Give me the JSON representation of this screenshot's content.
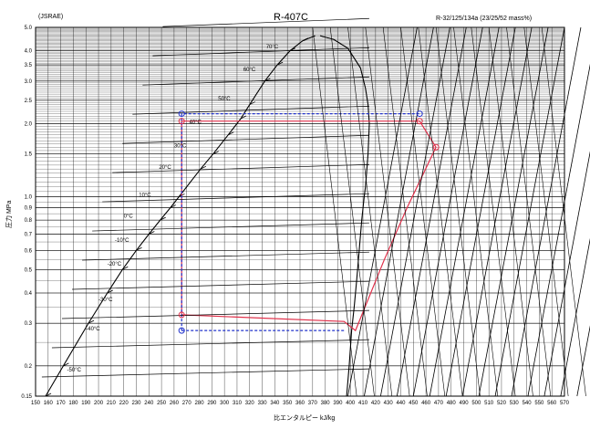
{
  "chart_data": {
    "type": "line",
    "title": "R-407C",
    "publisher": "(JSRAE)",
    "composition": "R-32/125/134a (23/25/52 mass%)",
    "xlabel": "比エンタルピー kJ/kg",
    "ylabel": "圧力 MPa",
    "x_scale": "linear",
    "y_scale": "log",
    "xlim": [
      150,
      570
    ],
    "ylim": [
      0.15,
      5.0
    ],
    "grid": true,
    "x_ticks": [
      150,
      160,
      170,
      180,
      190,
      200,
      210,
      220,
      230,
      240,
      250,
      260,
      270,
      280,
      290,
      300,
      310,
      320,
      330,
      340,
      350,
      360,
      370,
      380,
      390,
      400,
      410,
      420,
      430,
      440,
      450,
      460,
      470,
      480,
      490,
      500,
      510,
      520,
      530,
      540,
      550,
      560,
      570
    ],
    "y_ticks": [
      {
        "v": 0.15,
        "label": "0.15"
      },
      {
        "v": 0.2,
        "label": "0.2"
      },
      {
        "v": 0.3,
        "label": "0.3"
      },
      {
        "v": 0.4,
        "label": "0.4"
      },
      {
        "v": 0.5,
        "label": "0.5"
      },
      {
        "v": 0.6,
        "label": "0.6"
      },
      {
        "v": 0.7,
        "label": "0.7"
      },
      {
        "v": 0.8,
        "label": "0.8"
      },
      {
        "v": 0.9,
        "label": "0.9"
      },
      {
        "v": 1.0,
        "label": "1.0"
      },
      {
        "v": 1.5,
        "label": "1.5"
      },
      {
        "v": 2.0,
        "label": "2.0"
      },
      {
        "v": 2.5,
        "label": "2.5"
      },
      {
        "v": 3.0,
        "label": "3.0"
      },
      {
        "v": 3.5,
        "label": "3.5"
      },
      {
        "v": 4.0,
        "label": "4.0"
      },
      {
        "v": 5.0,
        "label": "5.0"
      }
    ],
    "colors": {
      "cycle_red": "#e0304a",
      "cycle_blue": "#2233cc",
      "lines": "#000000",
      "grid": "#000000"
    },
    "series": [
      {
        "kind": "saturated-liquid",
        "points": [
          [
            158,
            0.15
          ],
          [
            172,
            0.2
          ],
          [
            192,
            0.3
          ],
          [
            207,
            0.4
          ],
          [
            219,
            0.5
          ],
          [
            230,
            0.6
          ],
          [
            240,
            0.7
          ],
          [
            249,
            0.8
          ],
          [
            257,
            0.9
          ],
          [
            264,
            1.0
          ],
          [
            281,
            1.3
          ],
          [
            291,
            1.5
          ],
          [
            303,
            1.8
          ],
          [
            313,
            2.1
          ],
          [
            320,
            2.4
          ],
          [
            332,
            3.0
          ],
          [
            342,
            3.5
          ],
          [
            352,
            4.0
          ],
          [
            362,
            4.4
          ],
          [
            372,
            4.62
          ]
        ]
      },
      {
        "kind": "saturated-vapor",
        "points": [
          [
            376,
            4.62
          ],
          [
            387,
            4.45
          ],
          [
            398,
            4.1
          ],
          [
            408,
            3.4
          ],
          [
            412,
            2.8
          ],
          [
            414,
            2.4
          ],
          [
            415,
            2.0
          ],
          [
            414,
            1.5
          ],
          [
            412,
            1.1
          ],
          [
            411,
            1.0
          ],
          [
            409,
            0.8
          ],
          [
            407,
            0.6
          ],
          [
            405,
            0.45
          ],
          [
            403,
            0.35
          ],
          [
            401,
            0.28
          ],
          [
            399,
            0.2
          ],
          [
            397,
            0.15
          ]
        ]
      },
      {
        "kind": "cycle-red",
        "points": [
          [
            266,
            0.325
          ],
          [
            266,
            2.05
          ],
          [
            455,
            2.05
          ],
          [
            468,
            1.6
          ],
          [
            445,
            0.9
          ],
          [
            427,
            0.55
          ],
          [
            404,
            0.28
          ],
          [
            395,
            0.305
          ],
          [
            266,
            0.325
          ]
        ]
      },
      {
        "kind": "cycle-blue",
        "points": [
          [
            266,
            0.28
          ],
          [
            266,
            2.2
          ],
          [
            455,
            2.2
          ]
        ]
      },
      {
        "kind": "cycle-blue-2",
        "points": [
          [
            266,
            0.28
          ],
          [
            395,
            0.28
          ]
        ]
      }
    ],
    "temperature_labels": [
      {
        "text": "-50°C",
        "h": 175,
        "p": 0.19
      },
      {
        "text": "-40°C",
        "h": 190,
        "p": 0.28
      },
      {
        "text": "-30°C",
        "h": 200,
        "p": 0.37
      },
      {
        "text": "-20°C",
        "h": 207,
        "p": 0.52
      },
      {
        "text": "-10°C",
        "h": 213,
        "p": 0.65
      },
      {
        "text": "0°C",
        "h": 220,
        "p": 0.82
      },
      {
        "text": "10°C",
        "h": 232,
        "p": 1.0
      },
      {
        "text": "20°C",
        "h": 248,
        "p": 1.3
      },
      {
        "text": "30°C",
        "h": 260,
        "p": 1.6
      },
      {
        "text": "40°C",
        "h": 272,
        "p": 2.0
      },
      {
        "text": "50°C",
        "h": 295,
        "p": 2.5
      },
      {
        "text": "60°C",
        "h": 315,
        "p": 3.3
      },
      {
        "text": "70°C",
        "h": 333,
        "p": 4.1
      }
    ]
  }
}
